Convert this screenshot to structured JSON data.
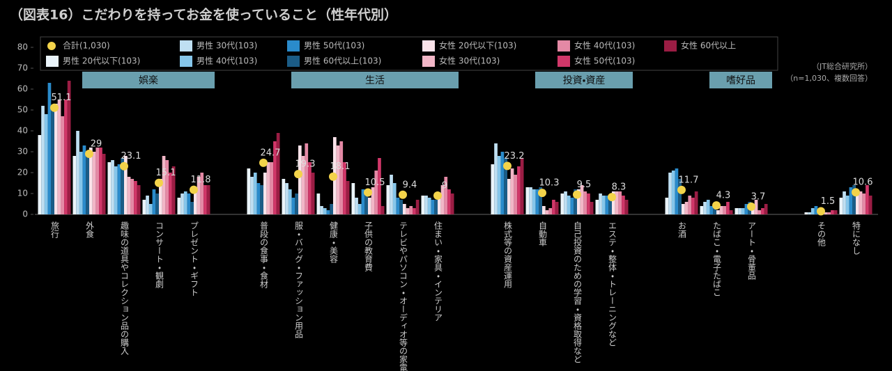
{
  "chart_data": {
    "type": "bar",
    "title": "（図表16）こだわりを持ってお金を使っていること（性年代別）",
    "source": "（JT総合研究所）",
    "note": "（n=1,030、複数回答）",
    "groups": [
      {
        "name": "娯楽",
        "categories": [
          "旅行",
          "外食",
          "趣味の道具やコレクション品の購入",
          "コンサート・観劇",
          "プレゼント・ギフト"
        ]
      },
      {
        "name": "生活",
        "categories": [
          "普段の食事・食材",
          "服・バッグ・ファッション用品",
          "健康・美容",
          "子供の教育費",
          "テレビやパソコン・オーディオ等の家電製品",
          "住まい・家具・インテリア"
        ]
      },
      {
        "name": "投資・資産",
        "categories": [
          "株式等の資産運用",
          "自動車",
          "自己投資のための学習・資格取得など",
          "エステ・整体・トレーニングなど"
        ]
      },
      {
        "name": "嗜好品",
        "categories": [
          "お酒",
          "たばこ・電子たばこ",
          "アート・骨董品"
        ]
      },
      {
        "categories": [
          "その他",
          "特になし"
        ]
      }
    ],
    "ylim": [
      0,
      80
    ],
    "yticks": [
      0,
      10,
      20,
      30,
      40,
      50,
      60,
      70,
      80
    ],
    "series": [
      {
        "name": "合計(1,030)",
        "marker": "dot",
        "color": "#f3d34a",
        "values": [
          51.1,
          29.0,
          23.1,
          15.1,
          11.8,
          24.7,
          19.3,
          18.1,
          10.5,
          9.4,
          9.0,
          23.2,
          10.3,
          9.5,
          8.3,
          11.7,
          4.3,
          3.7,
          1.5,
          10.6
        ]
      },
      {
        "name": "男性 20代以下(103)",
        "color": "#eaf4fa",
        "values": [
          38,
          28,
          25,
          7,
          8,
          22,
          17,
          10,
          15,
          14,
          9,
          24,
          13,
          10,
          7,
          8,
          4,
          3,
          1,
          8
        ]
      },
      {
        "name": "男性 30代(103)",
        "color": "#bfdff2",
        "values": [
          52,
          40,
          26,
          9,
          10,
          18,
          15,
          4,
          8,
          19,
          9,
          34,
          13,
          11,
          10,
          20,
          6,
          3,
          1,
          11
        ]
      },
      {
        "name": "男性 40代(103)",
        "color": "#86c6ea",
        "values": [
          48,
          30,
          23,
          5,
          11,
          20,
          12,
          3,
          5,
          15,
          8,
          28,
          12,
          9,
          9,
          21,
          7,
          3,
          3,
          9
        ]
      },
      {
        "name": "男性 50代(103)",
        "color": "#2a8bcb",
        "values": [
          63,
          33,
          24,
          12,
          10,
          15,
          8,
          2,
          12,
          8,
          7,
          30,
          12,
          8,
          9,
          22,
          4,
          5,
          4,
          13
        ]
      },
      {
        "name": "男性 60代以上(103)",
        "color": "#1b5c86",
        "values": [
          50,
          28,
          27,
          10,
          6,
          14,
          10,
          5,
          9,
          7,
          7,
          27,
          13,
          12,
          8,
          17,
          4,
          6,
          1,
          14
        ]
      },
      {
        "name": "女性 20代以下(103)",
        "color": "#fbe3ea",
        "values": [
          53,
          32,
          28,
          17,
          13,
          20,
          33,
          37,
          8,
          5,
          9,
          17,
          4,
          12,
          11,
          5,
          2,
          4,
          0,
          10
        ]
      },
      {
        "name": "女性 30代(103)",
        "color": "#f2b6c7",
        "values": [
          55,
          30,
          18,
          28,
          18,
          25,
          28,
          33,
          13,
          3,
          14,
          22,
          2,
          14,
          11,
          6,
          4,
          7,
          1,
          11
        ]
      },
      {
        "name": "女性 40代(103)",
        "color": "#e489a5",
        "values": [
          47,
          32,
          17,
          26,
          20,
          25,
          34,
          35,
          21,
          4,
          18,
          19,
          3,
          11,
          11,
          9,
          4,
          2,
          1,
          10
        ]
      },
      {
        "name": "女性 50代(103)",
        "color": "#d13769",
        "values": [
          55,
          32,
          16,
          20,
          14,
          35,
          25,
          25,
          27,
          3,
          12,
          23,
          7,
          10,
          9,
          8,
          6,
          3,
          2,
          14
        ]
      },
      {
        "name": "女性 60代以上",
        "color": "#9b1d44",
        "values": [
          64,
          29,
          14,
          23,
          14,
          39,
          20,
          16,
          4,
          7,
          10,
          27,
          6,
          6,
          7,
          11,
          2,
          5,
          2,
          9
        ]
      }
    ]
  }
}
